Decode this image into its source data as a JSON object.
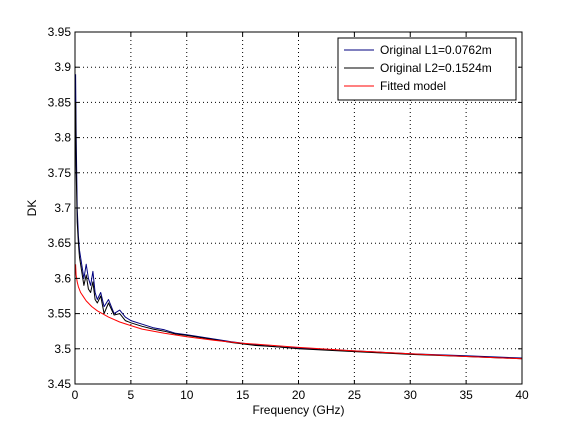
{
  "chart_data": {
    "type": "line",
    "title": "",
    "xlabel": "Frequency (GHz)",
    "ylabel": "DK",
    "xlim": [
      0,
      40
    ],
    "ylim": [
      3.45,
      3.95
    ],
    "x_ticks": [
      0,
      5,
      10,
      15,
      20,
      25,
      30,
      35,
      40
    ],
    "x_tick_labels": [
      "0",
      "5",
      "10",
      "15",
      "20",
      "25",
      "30",
      "35",
      "40"
    ],
    "y_ticks": [
      3.45,
      3.5,
      3.55,
      3.6,
      3.65,
      3.7,
      3.75,
      3.8,
      3.85,
      3.9,
      3.95
    ],
    "y_tick_labels": [
      "3.45",
      "3.5",
      "3.55",
      "3.6",
      "3.65",
      "3.7",
      "3.75",
      "3.8",
      "3.85",
      "3.9",
      "3.95"
    ],
    "grid": true,
    "legend_position": "top-right",
    "series": [
      {
        "name": "Original L1=0.0762m",
        "color": "#00007f",
        "x": [
          0.05,
          0.1,
          0.2,
          0.3,
          0.4,
          0.5,
          0.6,
          0.8,
          1.0,
          1.2,
          1.4,
          1.6,
          1.8,
          2.0,
          2.3,
          2.6,
          3.0,
          3.5,
          4.0,
          4.5,
          5.0,
          6.0,
          7.0,
          8.0,
          9.0,
          10.0,
          12.0,
          14.0,
          16.0,
          18.0,
          20.0,
          25.0,
          30.0,
          35.0,
          40.0
        ],
        "values": [
          3.89,
          3.81,
          3.7,
          3.66,
          3.64,
          3.63,
          3.62,
          3.6,
          3.62,
          3.6,
          3.59,
          3.61,
          3.58,
          3.57,
          3.58,
          3.56,
          3.57,
          3.55,
          3.555,
          3.545,
          3.54,
          3.535,
          3.53,
          3.527,
          3.522,
          3.52,
          3.515,
          3.51,
          3.506,
          3.503,
          3.501,
          3.497,
          3.493,
          3.49,
          3.487
        ]
      },
      {
        "name": "Original L2=0.1524m",
        "color": "#000000",
        "x": [
          0.05,
          0.1,
          0.2,
          0.3,
          0.4,
          0.5,
          0.6,
          0.8,
          1.0,
          1.2,
          1.4,
          1.6,
          1.8,
          2.0,
          2.3,
          2.6,
          3.0,
          3.5,
          4.0,
          4.5,
          5.0,
          6.0,
          7.0,
          8.0,
          9.0,
          10.0,
          12.0,
          14.0,
          16.0,
          18.0,
          20.0,
          25.0,
          30.0,
          35.0,
          40.0
        ],
        "values": [
          3.85,
          3.76,
          3.68,
          3.65,
          3.63,
          3.62,
          3.61,
          3.59,
          3.605,
          3.585,
          3.58,
          3.595,
          3.57,
          3.565,
          3.575,
          3.55,
          3.565,
          3.548,
          3.55,
          3.54,
          3.537,
          3.532,
          3.528,
          3.525,
          3.521,
          3.519,
          3.514,
          3.509,
          3.505,
          3.503,
          3.5,
          3.496,
          3.492,
          3.489,
          3.486
        ]
      },
      {
        "name": "Fitted model",
        "color": "#ff0000",
        "x": [
          0.05,
          0.1,
          0.2,
          0.3,
          0.5,
          0.75,
          1.0,
          1.5,
          2.0,
          3.0,
          4.0,
          5.0,
          6.0,
          8.0,
          10.0,
          12.5,
          15.0,
          20.0,
          25.0,
          30.0,
          35.0,
          40.0
        ],
        "values": [
          3.62,
          3.605,
          3.595,
          3.588,
          3.58,
          3.574,
          3.568,
          3.56,
          3.554,
          3.545,
          3.538,
          3.533,
          3.528,
          3.522,
          3.517,
          3.512,
          3.508,
          3.502,
          3.497,
          3.493,
          3.489,
          3.486
        ]
      }
    ]
  }
}
